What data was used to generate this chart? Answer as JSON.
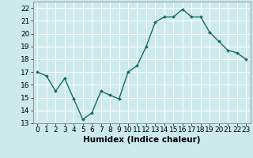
{
  "x": [
    0,
    1,
    2,
    3,
    4,
    5,
    6,
    7,
    8,
    9,
    10,
    11,
    12,
    13,
    14,
    15,
    16,
    17,
    18,
    19,
    20,
    21,
    22,
    23
  ],
  "y": [
    17.0,
    16.7,
    15.5,
    16.5,
    14.9,
    13.3,
    13.8,
    15.5,
    15.2,
    14.9,
    17.0,
    17.5,
    19.0,
    20.9,
    21.3,
    21.3,
    21.9,
    21.3,
    21.3,
    20.1,
    19.4,
    18.7,
    18.5,
    18.0
  ],
  "line_color": "#1a6b5a",
  "marker": "D",
  "marker_size": 2.0,
  "line_width": 1.0,
  "bg_color": "#cceaea",
  "grid_color": "#ffffff",
  "xlabel": "Humidex (Indice chaleur)",
  "xlim": [
    -0.5,
    23.5
  ],
  "ylim": [
    13,
    22.5
  ],
  "yticks": [
    13,
    14,
    15,
    16,
    17,
    18,
    19,
    20,
    21,
    22
  ],
  "xtick_labels": [
    "0",
    "1",
    "2",
    "3",
    "4",
    "5",
    "6",
    "7",
    "8",
    "9",
    "10",
    "11",
    "12",
    "13",
    "14",
    "15",
    "16",
    "17",
    "18",
    "19",
    "20",
    "21",
    "22",
    "23"
  ],
  "xlabel_fontsize": 7.5,
  "tick_fontsize": 6.5
}
